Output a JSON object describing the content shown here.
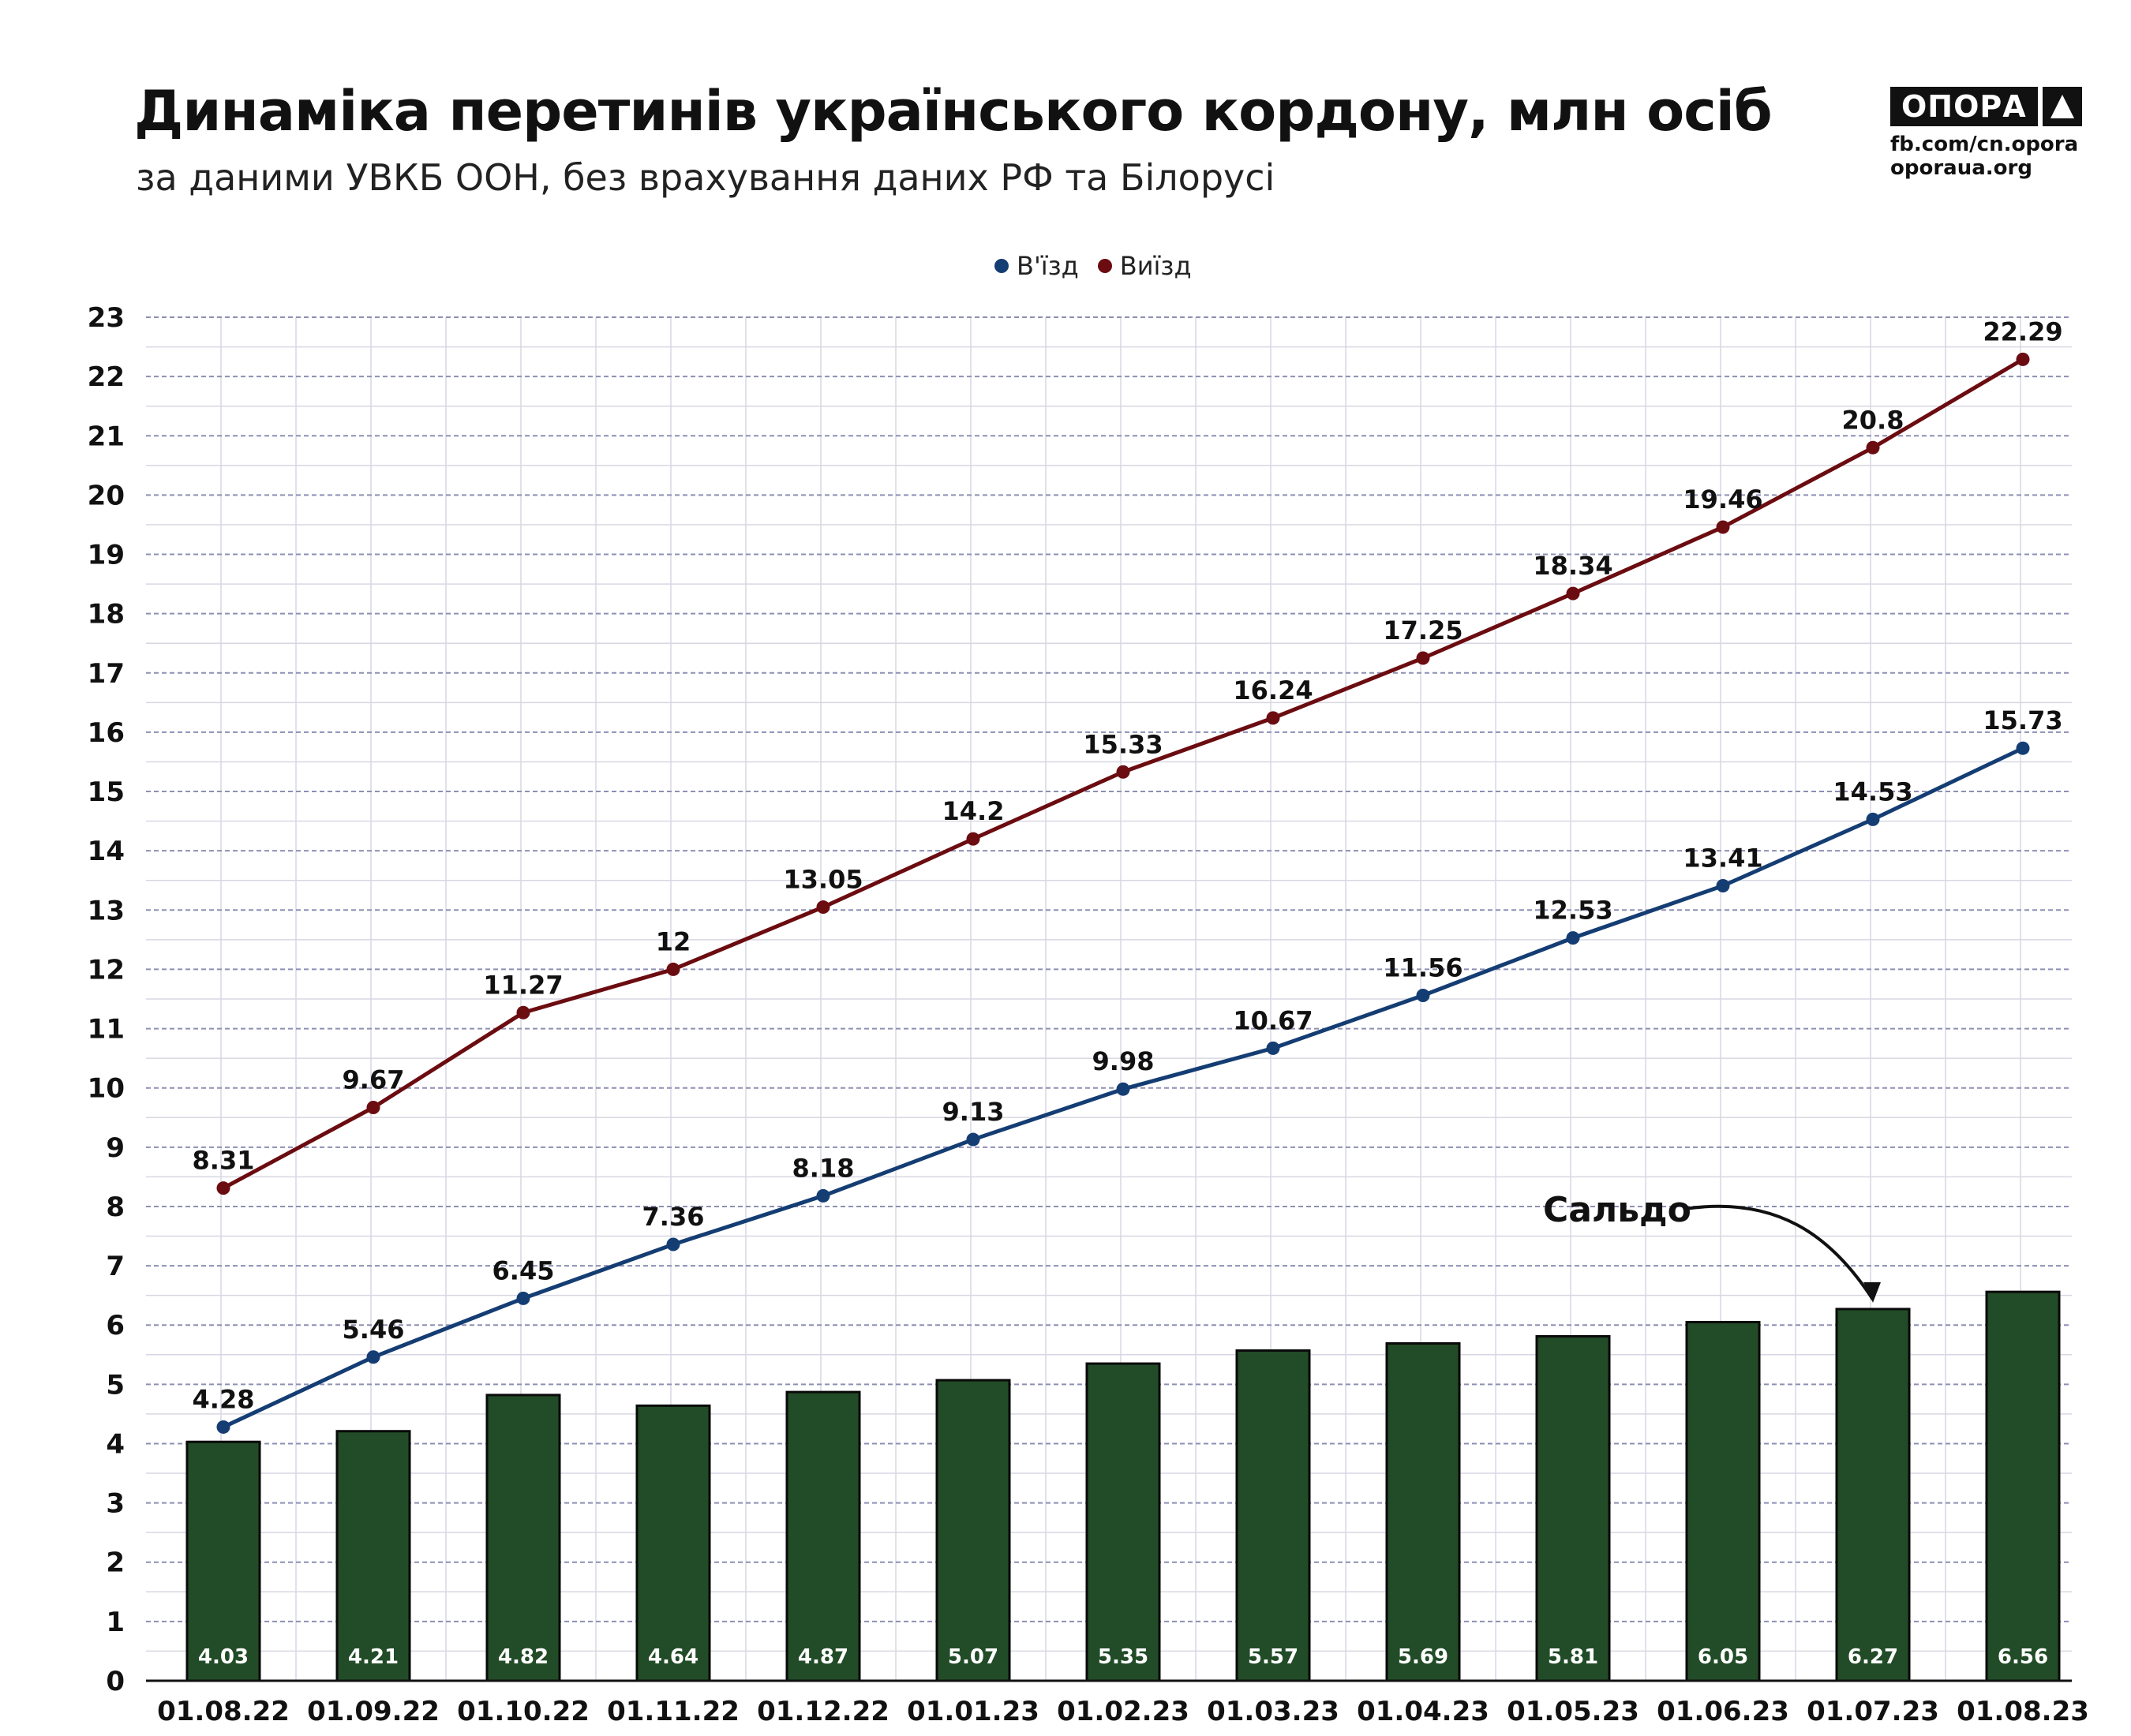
{
  "header": {
    "title": "Динаміка перетинів українського кордону, млн осіб",
    "subtitle": "за даними УВКБ ООН, без врахування даних РФ та Білорусі"
  },
  "brand": {
    "name": "ОПОРА",
    "link1": "fb.com/cn.opora",
    "link2": "oporaua.org",
    "icon": "triangle-icon"
  },
  "chart_data": {
    "type": "bar",
    "categories": [
      "01.08.22",
      "01.09.22",
      "01.10.22",
      "01.11.22",
      "01.12.22",
      "01.01.23",
      "01.02.23",
      "01.03.23",
      "01.04.23",
      "01.05.23",
      "01.06.23",
      "01.07.23",
      "01.08.23"
    ],
    "series": [
      {
        "name": "В'їзд",
        "type": "line",
        "color": "#143d73",
        "values": [
          4.28,
          5.46,
          6.45,
          7.36,
          8.18,
          9.13,
          9.98,
          10.67,
          11.56,
          12.53,
          13.41,
          14.53,
          15.73
        ]
      },
      {
        "name": "Виїзд",
        "type": "line",
        "color": "#6b0c11",
        "values": [
          8.31,
          9.67,
          11.27,
          12,
          13.05,
          14.2,
          15.33,
          16.24,
          17.25,
          18.34,
          19.46,
          20.8,
          22.29
        ]
      },
      {
        "name": "Сальдо",
        "type": "bar",
        "color": "#214c27",
        "values": [
          4.03,
          4.21,
          4.82,
          4.64,
          4.87,
          5.07,
          5.35,
          5.57,
          5.69,
          5.81,
          6.05,
          6.27,
          6.56
        ]
      }
    ],
    "legend": [
      "В'їзд",
      "Виїзд"
    ],
    "legend_position": "top",
    "annotation": "Сальдо",
    "yticks": [
      "0",
      "1",
      "2",
      "3",
      "4",
      "5",
      "6",
      "7",
      "8",
      "9",
      "10",
      "11",
      "12",
      "13",
      "14",
      "15",
      "16",
      "17",
      "18",
      "19",
      "20",
      "21",
      "22",
      "23"
    ],
    "ylim": [
      0,
      23
    ],
    "grid": true,
    "xlabel": "",
    "ylabel": ""
  }
}
